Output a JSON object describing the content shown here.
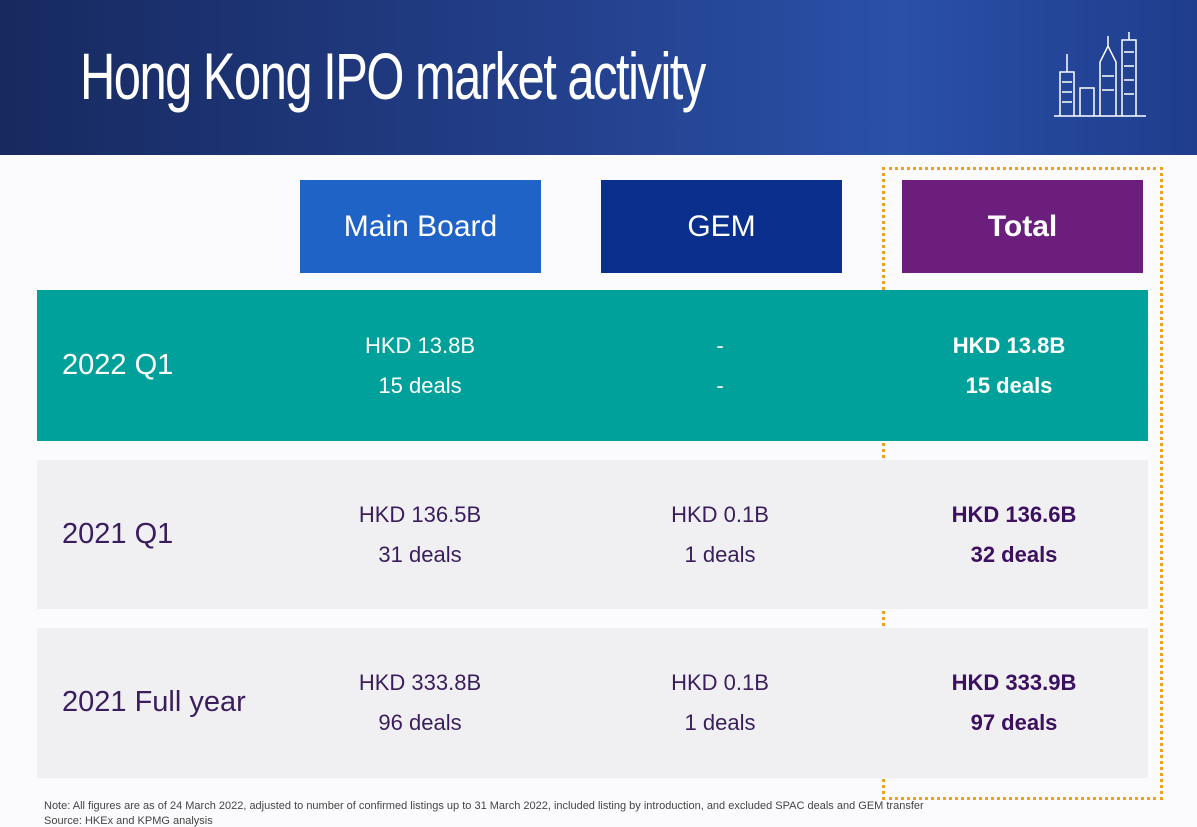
{
  "header": {
    "title": "Hong Kong IPO market activity"
  },
  "table": {
    "columns": [
      "Main Board",
      "GEM",
      "Total"
    ],
    "rows": [
      {
        "label": "2022 Q1",
        "cells": [
          [
            "HKD 13.8B",
            "15 deals"
          ],
          [
            "-",
            "-"
          ],
          [
            "HKD 13.8B",
            "15 deals"
          ]
        ]
      },
      {
        "label": "2021 Q1",
        "cells": [
          [
            "HKD 136.5B",
            "31 deals"
          ],
          [
            "HKD 0.1B",
            "1 deals"
          ],
          [
            "HKD 136.6B",
            "32 deals"
          ]
        ]
      },
      {
        "label": "2021 Full year",
        "cells": [
          [
            "HKD 333.8B",
            "96 deals"
          ],
          [
            "HKD 0.1B",
            "1 deals"
          ],
          [
            "HKD 333.9B",
            "97 deals"
          ]
        ]
      }
    ]
  },
  "notes": [
    "Note: All figures are as of 24 March 2022, adjusted to number of confirmed listings up to 31 March 2022, included listing by introduction, and excluded SPAC deals and GEM transfer",
    "Source: HKEx and KPMG analysis"
  ]
}
